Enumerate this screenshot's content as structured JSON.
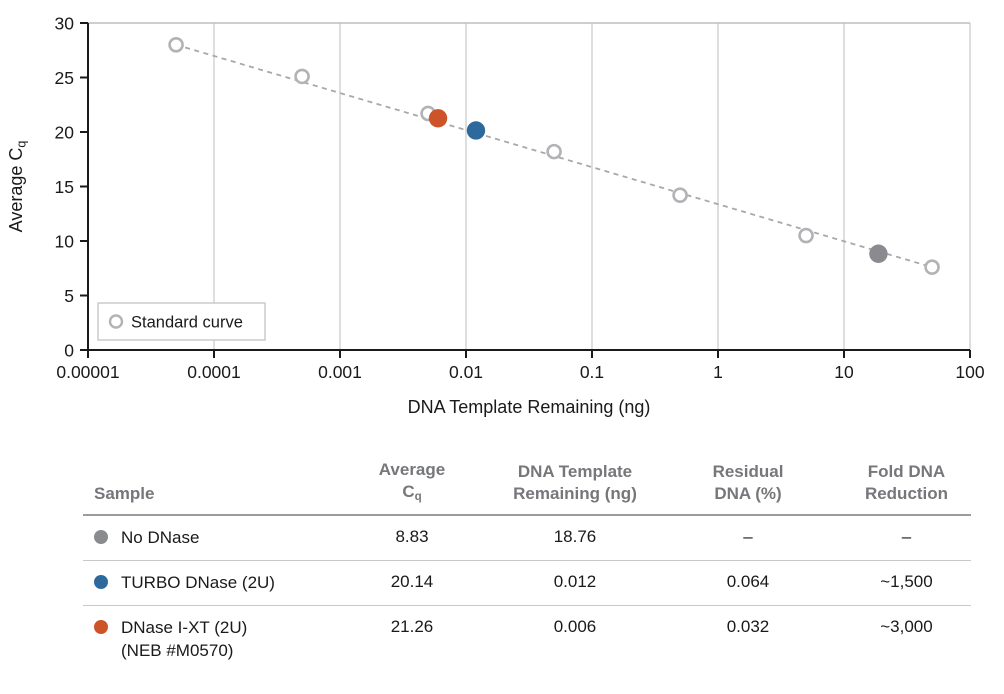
{
  "chart_data": {
    "type": "scatter",
    "title": "",
    "xlabel": "DNA Template Remaining (ng)",
    "ylabel": {
      "text": "Average C",
      "sub": "q"
    },
    "x_scale": "log",
    "xlim": [
      1e-05,
      100
    ],
    "ylim": [
      0,
      30
    ],
    "x_ticks": [
      {
        "value": 1e-05,
        "label": "0.00001"
      },
      {
        "value": 0.0001,
        "label": "0.0001"
      },
      {
        "value": 0.001,
        "label": "0.001"
      },
      {
        "value": 0.01,
        "label": "0.01"
      },
      {
        "value": 0.1,
        "label": "0.1"
      },
      {
        "value": 1,
        "label": "1"
      },
      {
        "value": 10,
        "label": "10"
      },
      {
        "value": 100,
        "label": "100"
      }
    ],
    "y_ticks": [
      {
        "value": 0,
        "label": "0"
      },
      {
        "value": 5,
        "label": "5"
      },
      {
        "value": 10,
        "label": "10"
      },
      {
        "value": 15,
        "label": "15"
      },
      {
        "value": 20,
        "label": "20"
      },
      {
        "value": 25,
        "label": "25"
      },
      {
        "value": 30,
        "label": "30"
      }
    ],
    "grid": "vertical-only",
    "legend": {
      "label": "Standard curve",
      "position": "bottom-left"
    },
    "series": [
      {
        "name": "Standard curve",
        "marker": "open-circle",
        "color": "#b2b3b6",
        "trendline": "dashed",
        "trendline_color": "#a8a8a8",
        "points": [
          {
            "x": 5e-05,
            "y": 28.0
          },
          {
            "x": 0.0005,
            "y": 25.1
          },
          {
            "x": 0.005,
            "y": 21.7
          },
          {
            "x": 0.05,
            "y": 18.2
          },
          {
            "x": 0.5,
            "y": 14.2
          },
          {
            "x": 5,
            "y": 10.5
          },
          {
            "x": 50,
            "y": 7.6
          }
        ]
      },
      {
        "name": "No DNase",
        "marker": "filled-circle",
        "color": "#8a8b8e",
        "points": [
          {
            "x": 18.76,
            "y": 8.83
          }
        ]
      },
      {
        "name": "TURBO DNase (2U)",
        "marker": "filled-circle",
        "color": "#2e699e",
        "points": [
          {
            "x": 0.012,
            "y": 20.14
          }
        ]
      },
      {
        "name": "DNase I-XT (2U) (NEB #M0570)",
        "marker": "filled-circle",
        "color": "#cd5428",
        "points": [
          {
            "x": 0.006,
            "y": 21.26
          }
        ]
      }
    ],
    "colors": {
      "axis": "#1a1a1a",
      "gridline": "#d4d4d4",
      "frame": "#bdbdbd",
      "legend_border": "#c4c4c4"
    }
  },
  "table": {
    "headers": {
      "sample": {
        "line1": "Sample",
        "line2": "",
        "sub": ""
      },
      "avg": {
        "line1": "Average",
        "line2": "C",
        "sub": "q"
      },
      "dna": {
        "line1": "DNA Template",
        "line2": "Remaining (ng)",
        "sub": ""
      },
      "residual": {
        "line1": "Residual",
        "line2": "DNA (%)",
        "sub": ""
      },
      "fold": {
        "line1": "Fold DNA",
        "line2": "Reduction",
        "sub": ""
      }
    },
    "rows": [
      {
        "dot_color": "#8a8b8e",
        "sample_line1": "No DNase",
        "sample_line2": "",
        "avg_cq": "8.83",
        "dna_remaining": "18.76",
        "residual": "–",
        "fold": "–"
      },
      {
        "dot_color": "#2e699e",
        "sample_line1": "TURBO DNase (2U)",
        "sample_line2": "",
        "avg_cq": "20.14",
        "dna_remaining": "0.012",
        "residual": "0.064",
        "fold": "~1,500"
      },
      {
        "dot_color": "#cd5428",
        "sample_line1": "DNase I-XT (2U)",
        "sample_line2": "(NEB #M0570)",
        "avg_cq": "21.26",
        "dna_remaining": "0.006",
        "residual": "0.032",
        "fold": "~3,000"
      }
    ]
  }
}
